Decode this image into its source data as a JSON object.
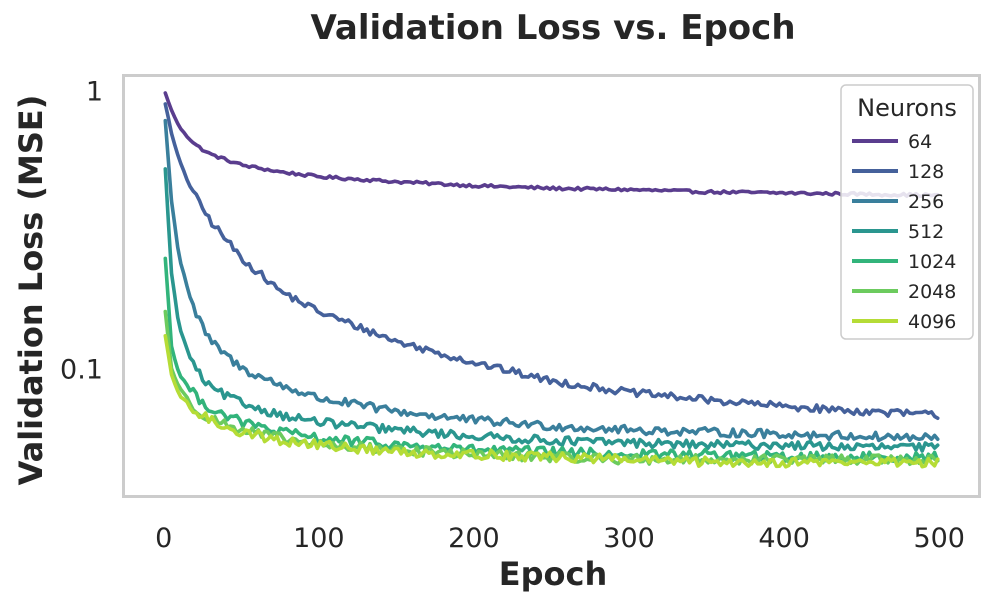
{
  "chart_data": {
    "type": "line",
    "title": "Validation Loss vs. Epoch",
    "xlabel": "Epoch",
    "ylabel": "Validation Loss (MSE)",
    "y_scale": "log",
    "xlim": [
      -25,
      525
    ],
    "ylim": [
      0.035,
      1.12
    ],
    "x_ticks": [
      0,
      100,
      200,
      300,
      400,
      500
    ],
    "x_tick_labels": [
      "0",
      "100",
      "200",
      "300",
      "400",
      "500"
    ],
    "y_ticks": [
      0.1,
      1
    ],
    "y_tick_labels": [
      "0.1",
      "1"
    ],
    "grid": false,
    "legend": {
      "title": "Neurons",
      "position": "top-right"
    },
    "x": [
      1,
      5,
      10,
      20,
      30,
      50,
      75,
      100,
      150,
      200,
      250,
      300,
      350,
      400,
      450,
      500
    ],
    "series": [
      {
        "name": "64",
        "color": "#5a3d8e",
        "noise": 0.012,
        "values": [
          0.98,
          0.85,
          0.74,
          0.64,
          0.59,
          0.54,
          0.51,
          0.49,
          0.47,
          0.455,
          0.445,
          0.44,
          0.432,
          0.428,
          0.424,
          0.42
        ]
      },
      {
        "name": "128",
        "color": "#45619b",
        "noise": 0.03,
        "values": [
          0.9,
          0.7,
          0.56,
          0.42,
          0.34,
          0.25,
          0.19,
          0.16,
          0.125,
          0.105,
          0.09,
          0.082,
          0.077,
          0.073,
          0.07,
          0.068
        ]
      },
      {
        "name": "256",
        "color": "#3a7f9c",
        "noise": 0.035,
        "values": [
          0.78,
          0.4,
          0.25,
          0.16,
          0.125,
          0.1,
          0.087,
          0.078,
          0.07,
          0.065,
          0.062,
          0.06,
          0.059,
          0.058,
          0.057,
          0.056
        ]
      },
      {
        "name": "512",
        "color": "#2a968f",
        "noise": 0.035,
        "values": [
          0.52,
          0.22,
          0.14,
          0.1,
          0.085,
          0.075,
          0.068,
          0.064,
          0.06,
          0.057,
          0.055,
          0.054,
          0.053,
          0.053,
          0.052,
          0.052
        ]
      },
      {
        "name": "1024",
        "color": "#32b47b",
        "noise": 0.04,
        "values": [
          0.25,
          0.12,
          0.095,
          0.08,
          0.072,
          0.064,
          0.059,
          0.056,
          0.053,
          0.051,
          0.05,
          0.049,
          0.049,
          0.048,
          0.048,
          0.048
        ]
      },
      {
        "name": "2048",
        "color": "#6ccb5e",
        "noise": 0.04,
        "values": [
          0.16,
          0.1,
          0.085,
          0.072,
          0.066,
          0.06,
          0.056,
          0.053,
          0.051,
          0.049,
          0.048,
          0.047,
          0.047,
          0.047,
          0.047,
          0.047
        ]
      },
      {
        "name": "4096",
        "color": "#b5dc36",
        "noise": 0.04,
        "values": [
          0.13,
          0.095,
          0.08,
          0.07,
          0.065,
          0.059,
          0.055,
          0.053,
          0.05,
          0.049,
          0.048,
          0.047,
          0.046,
          0.046,
          0.046,
          0.046
        ]
      }
    ]
  }
}
